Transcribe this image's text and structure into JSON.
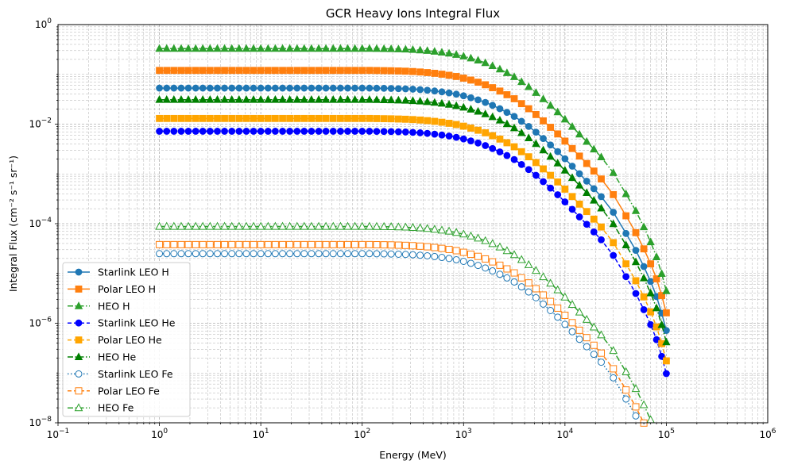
{
  "chart_data": {
    "type": "line",
    "title": "GCR Heavy Ions Integral Flux",
    "xlabel": "Energy (MeV)",
    "ylabel": "Integral Flux (cm⁻² s⁻¹ sr⁻¹)",
    "xscale": "log",
    "yscale": "log",
    "xlim": [
      0.1,
      1000000
    ],
    "ylim": [
      1e-08,
      1
    ],
    "x_ticks": [
      {
        "base": "10",
        "exp": "−1"
      },
      {
        "base": "10",
        "exp": "0"
      },
      {
        "base": "10",
        "exp": "1"
      },
      {
        "base": "10",
        "exp": "2"
      },
      {
        "base": "10",
        "exp": "3"
      },
      {
        "base": "10",
        "exp": "4"
      },
      {
        "base": "10",
        "exp": "5"
      },
      {
        "base": "10",
        "exp": "6"
      }
    ],
    "y_ticks": [
      {
        "base": "10",
        "exp": "−8"
      },
      {
        "base": "10",
        "exp": "−6"
      },
      {
        "base": "10",
        "exp": "−4"
      },
      {
        "base": "10",
        "exp": "−2"
      },
      {
        "base": "10",
        "exp": "0"
      }
    ],
    "grid": true,
    "legend_position": "lower-left",
    "series": [
      {
        "name": "Starlink LEO H",
        "plateau": 0.053,
        "color": "#1f77b4",
        "marker": "circle",
        "filled": true,
        "linestyle": "solid"
      },
      {
        "name": "Polar LEO H",
        "plateau": 0.12,
        "color": "#ff7f0e",
        "marker": "square",
        "filled": true,
        "linestyle": "solid"
      },
      {
        "name": "HEO H",
        "plateau": 0.33,
        "color": "#2ca02c",
        "marker": "triangle",
        "filled": true,
        "linestyle": "dashdot"
      },
      {
        "name": "Starlink LEO He",
        "plateau": 0.0072,
        "color": "#0000ff",
        "marker": "circle",
        "filled": true,
        "linestyle": "dashed"
      },
      {
        "name": "Polar LEO He",
        "plateau": 0.013,
        "color": "#ffa500",
        "marker": "square",
        "filled": true,
        "linestyle": "dashed"
      },
      {
        "name": "HEO He",
        "plateau": 0.031,
        "color": "#008000",
        "marker": "triangle",
        "filled": true,
        "linestyle": "dashdot"
      },
      {
        "name": "Starlink LEO Fe",
        "plateau": 2.5e-05,
        "color": "#1f77b4",
        "marker": "circle",
        "filled": false,
        "linestyle": "dotted"
      },
      {
        "name": "Polar LEO Fe",
        "plateau": 3.8e-05,
        "color": "#ff7f0e",
        "marker": "square",
        "filled": false,
        "linestyle": "dashed"
      },
      {
        "name": "HEO Fe",
        "plateau": 8.8e-05,
        "color": "#2ca02c",
        "marker": "triangle",
        "filled": false,
        "linestyle": "dashdot"
      }
    ],
    "x": [
      1,
      1.18,
      1.39,
      1.64,
      1.93,
      2.28,
      2.68,
      3.16,
      3.73,
      4.39,
      5.18,
      6.11,
      7.2,
      8.48,
      10,
      11.8,
      13.9,
      16.4,
      19.3,
      22.8,
      26.8,
      31.6,
      37.3,
      43.9,
      51.8,
      61.1,
      72,
      84.8,
      100,
      118,
      139,
      164,
      193,
      228,
      268,
      316,
      373,
      439,
      518,
      611,
      720,
      848,
      1000,
      1180,
      1390,
      1640,
      1930,
      2280,
      2680,
      3160,
      3730,
      4390,
      5180,
      6110,
      7200,
      8480,
      10000,
      11800,
      13900,
      16400,
      19300,
      22800,
      30000,
      40000,
      50000,
      60000,
      70000,
      80000,
      90000,
      100000
    ],
    "relative_flux": [
      1,
      1,
      1,
      1,
      1,
      1,
      1,
      1,
      1,
      1,
      1,
      1,
      1,
      1,
      1,
      1,
      1,
      1,
      1,
      1,
      1,
      1,
      1,
      1,
      1,
      1,
      1,
      1,
      1,
      1,
      0.995,
      0.99,
      0.985,
      0.975,
      0.965,
      0.95,
      0.93,
      0.905,
      0.875,
      0.84,
      0.8,
      0.755,
      0.7,
      0.64,
      0.58,
      0.515,
      0.45,
      0.385,
      0.325,
      0.27,
      0.215,
      0.17,
      0.13,
      0.097,
      0.072,
      0.053,
      0.038,
      0.027,
      0.019,
      0.0135,
      0.0095,
      0.0066,
      0.0032,
      0.0012,
      0.00055,
      0.00026,
      0.00013,
      6.5e-05,
      3e-05,
      1.35e-05
    ]
  }
}
